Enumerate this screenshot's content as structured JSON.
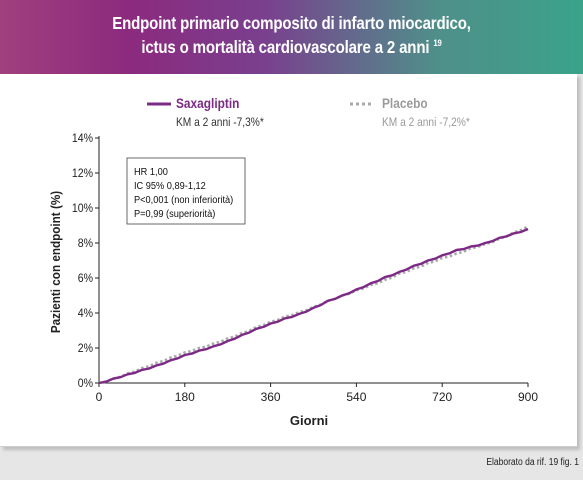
{
  "header": {
    "title_line1": "Endpoint primario composito di infarto  miocardico,",
    "title_line2": "ictus o mortalità cardiovascolare a 2 anni",
    "title_ref": "19"
  },
  "source_note": "Elaborato da rif. 19 fig. 1",
  "colors": {
    "saxagliptin": "#7d2a86",
    "placebo": "#a9a9a9"
  },
  "chart_data": {
    "type": "line",
    "xlabel": "Giorni",
    "ylabel": "Pazienti con endpoint (%)",
    "xlim": [
      0,
      900
    ],
    "ylim": [
      0,
      14
    ],
    "x_ticks": [
      "0",
      "180",
      "360",
      "540",
      "720",
      "900"
    ],
    "y_ticks": [
      "0%",
      "2%",
      "4%",
      "6%",
      "8%",
      "10%",
      "12%",
      "14%"
    ],
    "legend_position": "top",
    "stats": [
      "HR 1,00",
      "IC 95% 0,89-1,12",
      "P<0,001 (non inferiorità)",
      "P=0,99 (superiorità)"
    ],
    "series": [
      {
        "name": "Saxagliptin",
        "sublabel": "KM a 2 anni -7,3%*",
        "style": "solid",
        "points": [
          [
            0,
            0
          ],
          [
            30,
            0.25
          ],
          [
            60,
            0.5
          ],
          [
            90,
            0.75
          ],
          [
            120,
            1.0
          ],
          [
            150,
            1.3
          ],
          [
            180,
            1.6
          ],
          [
            210,
            1.85
          ],
          [
            240,
            2.1
          ],
          [
            270,
            2.4
          ],
          [
            300,
            2.75
          ],
          [
            330,
            3.1
          ],
          [
            360,
            3.4
          ],
          [
            390,
            3.7
          ],
          [
            420,
            3.95
          ],
          [
            450,
            4.3
          ],
          [
            480,
            4.7
          ],
          [
            510,
            5.0
          ],
          [
            540,
            5.35
          ],
          [
            570,
            5.7
          ],
          [
            600,
            6.05
          ],
          [
            630,
            6.35
          ],
          [
            660,
            6.7
          ],
          [
            690,
            7.0
          ],
          [
            720,
            7.3
          ],
          [
            750,
            7.6
          ],
          [
            780,
            7.8
          ],
          [
            810,
            8.0
          ],
          [
            840,
            8.3
          ],
          [
            870,
            8.55
          ],
          [
            900,
            8.8
          ]
        ]
      },
      {
        "name": "Placebo",
        "sublabel": "KM a 2 anni -7,2%*",
        "style": "dotted",
        "points": [
          [
            0,
            0
          ],
          [
            30,
            0.25
          ],
          [
            60,
            0.55
          ],
          [
            90,
            0.85
          ],
          [
            120,
            1.15
          ],
          [
            150,
            1.45
          ],
          [
            180,
            1.75
          ],
          [
            210,
            2.0
          ],
          [
            240,
            2.25
          ],
          [
            270,
            2.55
          ],
          [
            300,
            2.85
          ],
          [
            330,
            3.2
          ],
          [
            360,
            3.5
          ],
          [
            390,
            3.8
          ],
          [
            420,
            4.05
          ],
          [
            450,
            4.35
          ],
          [
            480,
            4.7
          ],
          [
            510,
            5.0
          ],
          [
            540,
            5.3
          ],
          [
            570,
            5.6
          ],
          [
            600,
            5.9
          ],
          [
            630,
            6.25
          ],
          [
            660,
            6.55
          ],
          [
            690,
            6.85
          ],
          [
            720,
            7.15
          ],
          [
            750,
            7.4
          ],
          [
            780,
            7.7
          ],
          [
            810,
            7.95
          ],
          [
            840,
            8.25
          ],
          [
            870,
            8.6
          ],
          [
            900,
            8.95
          ]
        ]
      }
    ]
  }
}
